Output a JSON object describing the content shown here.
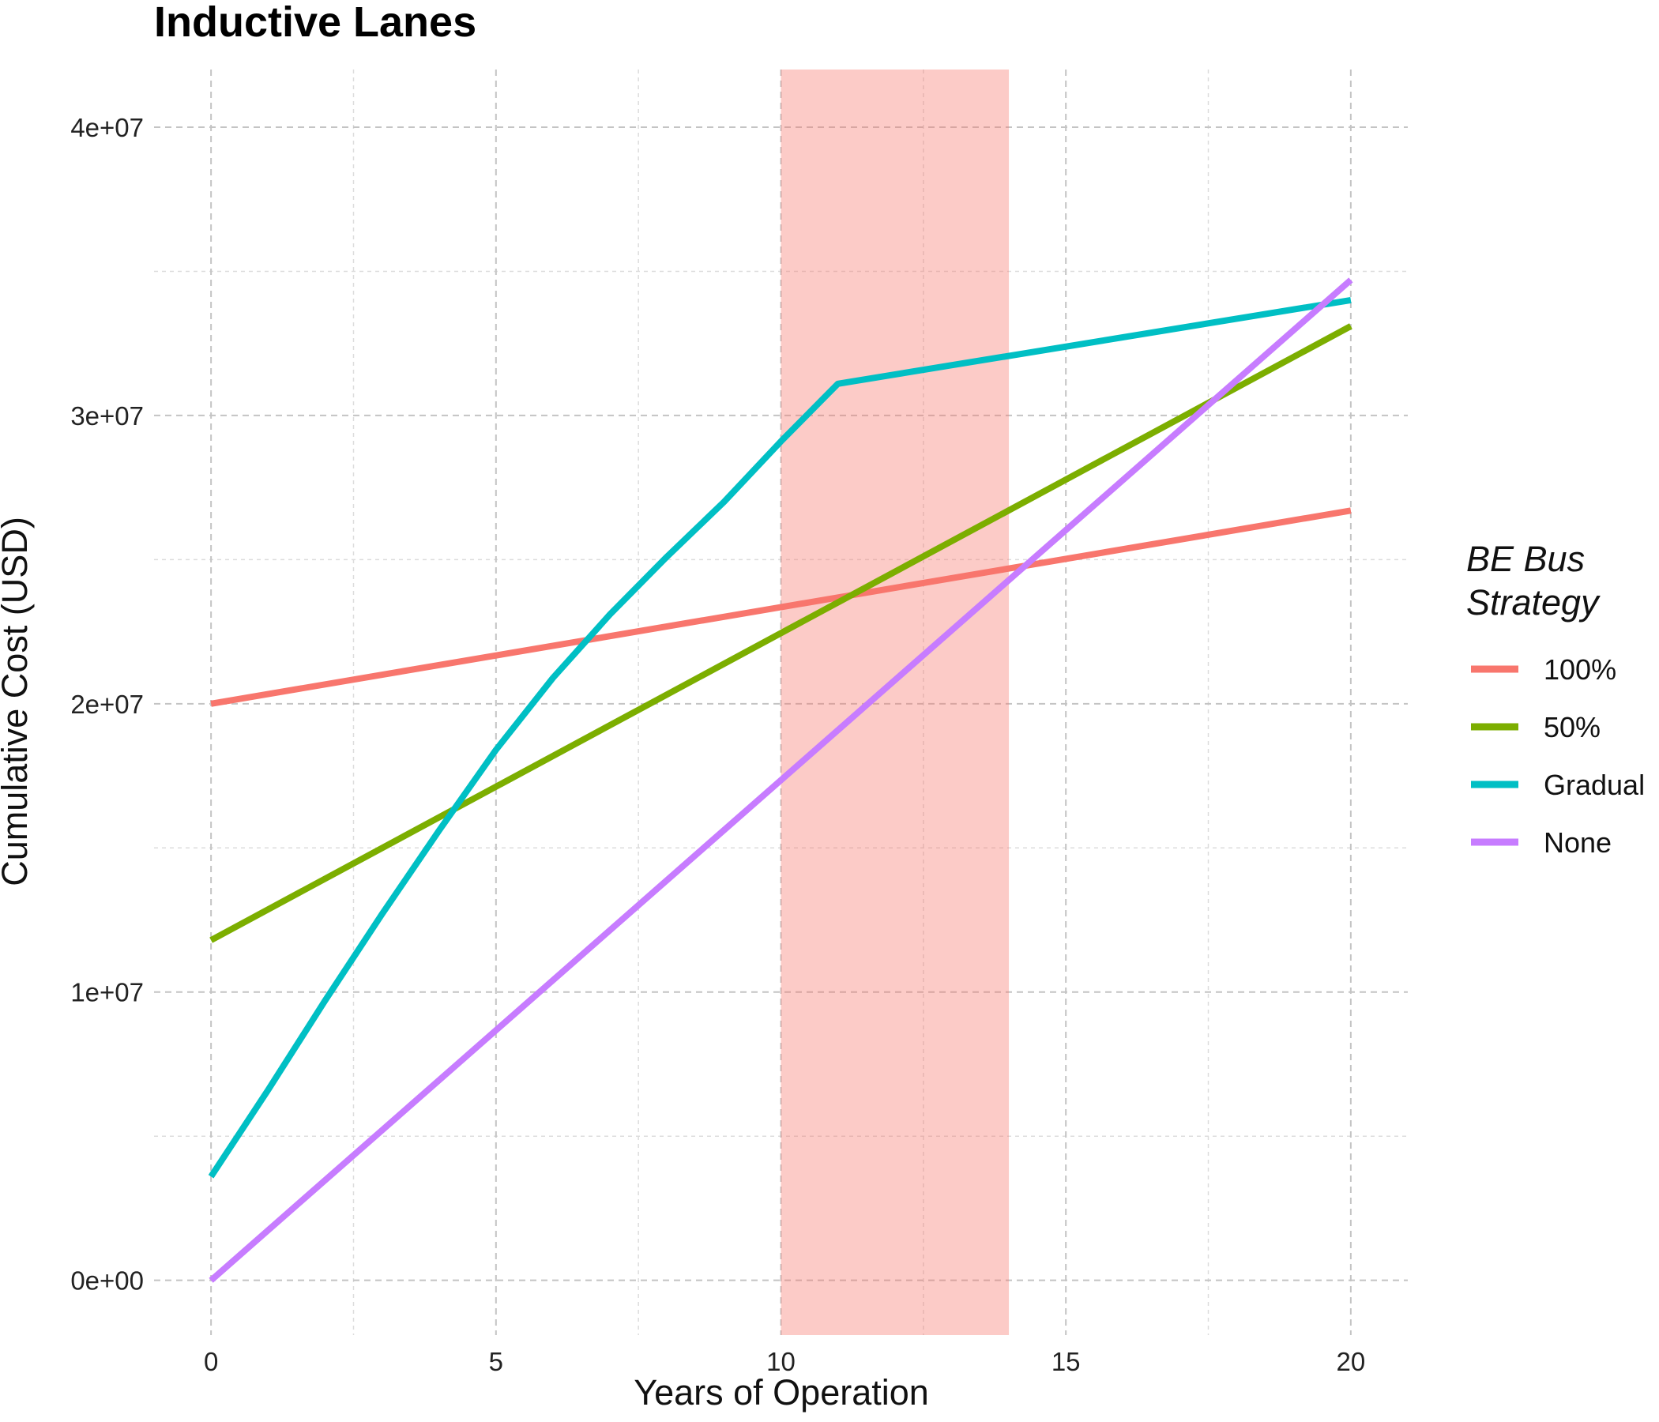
{
  "chart_data": {
    "type": "line",
    "title": "Inductive Lanes",
    "xlabel": "Years of Operation",
    "ylabel": "Cumulative Cost (USD)",
    "xlim": [
      -1,
      21
    ],
    "ylim": [
      -1900000,
      42000000
    ],
    "x_ticks": [
      0,
      5,
      10,
      15,
      20
    ],
    "x_tick_labels": [
      "0",
      "5",
      "10",
      "15",
      "20"
    ],
    "y_ticks": [
      0,
      10000000,
      20000000,
      30000000,
      40000000
    ],
    "y_tick_labels": [
      "0e+00",
      "1e+07",
      "2e+07",
      "3e+07",
      "4e+07"
    ],
    "grid": true,
    "shaded_region": {
      "x_start": 10,
      "x_end": 14,
      "color": "#F8766D",
      "opacity": 0.38
    },
    "legend": {
      "title": [
        "BE Bus",
        "Strategy"
      ],
      "position": "right"
    },
    "series": [
      {
        "name": "100%",
        "color": "#F8766D",
        "x": [
          0,
          20
        ],
        "y": [
          20000000,
          26700000
        ]
      },
      {
        "name": "50%",
        "color": "#7CAE00",
        "x": [
          0,
          20
        ],
        "y": [
          11800000,
          33100000
        ]
      },
      {
        "name": "Gradual",
        "color": "#00BFC4",
        "x": [
          0,
          1,
          2,
          3,
          4,
          5,
          6,
          7,
          8,
          9,
          10,
          11,
          20
        ],
        "y": [
          3600000,
          6600000,
          9700000,
          12700000,
          15600000,
          18400000,
          20900000,
          23100000,
          25100000,
          27000000,
          29100000,
          31100000,
          34000000
        ]
      },
      {
        "name": "None",
        "color": "#C77CFF",
        "x": [
          0,
          20
        ],
        "y": [
          0,
          34700000
        ]
      }
    ]
  }
}
